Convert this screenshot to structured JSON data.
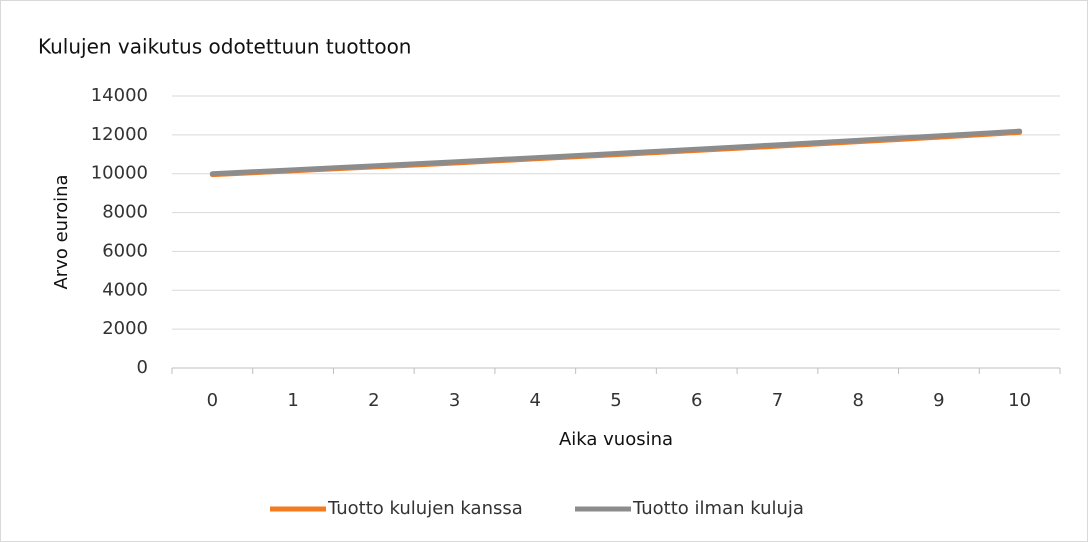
{
  "chart_data": {
    "type": "line",
    "title": "Kulujen vaikutus odotettuun tuottoon",
    "xlabel": "Aika vuosina",
    "ylabel": "Arvo euroina",
    "categories": [
      "0",
      "1",
      "2",
      "3",
      "4",
      "5",
      "6",
      "7",
      "8",
      "9",
      "10"
    ],
    "series": [
      {
        "name": "Tuotto kulujen kanssa",
        "color": "#f47b20",
        "values": [
          9950,
          10150,
          10350,
          10550,
          10770,
          10980,
          11200,
          11420,
          11650,
          11880,
          12130
        ]
      },
      {
        "name": "Tuotto ilman kuluja",
        "color": "#8c8c8c",
        "values": [
          10000,
          10200,
          10404,
          10612,
          10824,
          11041,
          11262,
          11487,
          11717,
          11951,
          12190
        ]
      }
    ],
    "ylim": [
      0,
      14000
    ],
    "yticks": [
      0,
      2000,
      4000,
      6000,
      8000,
      10000,
      12000,
      14000
    ],
    "grid": true,
    "legend": "bottom"
  }
}
